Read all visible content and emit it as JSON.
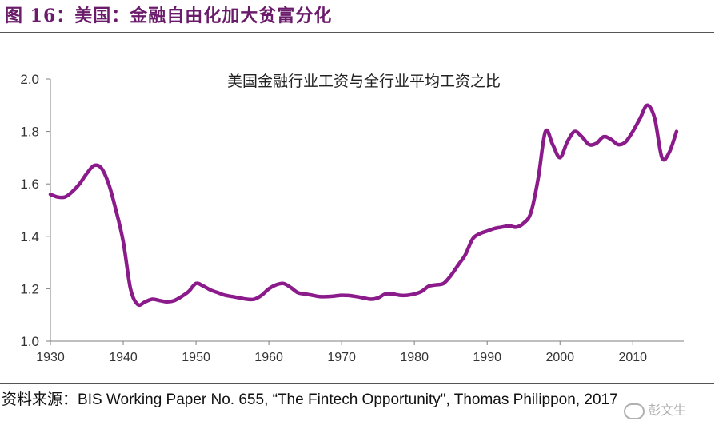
{
  "figure": {
    "title": "图 16：美国：金融自由化加大贫富分化"
  },
  "source": {
    "label": "资料来源：",
    "text": "BIS Working Paper No. 655, “The Fintech Opportunity\", Thomas Philippon, 2017"
  },
  "watermark": {
    "text": "彭文生"
  },
  "chart_data": {
    "type": "line",
    "title": "美国金融行业工资与全行业平均工资之比",
    "xlabel": "",
    "ylabel": "",
    "xlim": [
      1930,
      2017
    ],
    "ylim": [
      1.0,
      2.0
    ],
    "xticks": [
      1930,
      1940,
      1950,
      1960,
      1970,
      1980,
      1990,
      2000,
      2010
    ],
    "yticks": [
      "1.0",
      "1.2",
      "1.4",
      "1.6",
      "1.8",
      "2.0"
    ],
    "grid": false,
    "line_color": "#8b1a8b",
    "series": [
      {
        "x": [
          1930,
          1931,
          1932,
          1933,
          1934,
          1935,
          1936,
          1937,
          1938,
          1939,
          1940,
          1941,
          1942,
          1943,
          1944,
          1945,
          1946,
          1947,
          1948,
          1949,
          1950,
          1951,
          1952,
          1953,
          1954,
          1955,
          1956,
          1957,
          1958,
          1959,
          1960,
          1961,
          1962,
          1963,
          1964,
          1965,
          1966,
          1967,
          1968,
          1969,
          1970,
          1971,
          1972,
          1973,
          1974,
          1975,
          1976,
          1977,
          1978,
          1979,
          1980,
          1981,
          1982,
          1983,
          1984,
          1985,
          1986,
          1987,
          1988,
          1989,
          1990,
          1991,
          1992,
          1993,
          1994,
          1995,
          1996,
          1997,
          1998,
          1999,
          2000,
          2001,
          2002,
          2003,
          2004,
          2005,
          2006,
          2007,
          2008,
          2009,
          2010,
          2011,
          2012,
          2013,
          2014,
          2015,
          2016
        ],
        "y": [
          1.56,
          1.55,
          1.55,
          1.57,
          1.6,
          1.64,
          1.67,
          1.66,
          1.6,
          1.5,
          1.38,
          1.2,
          1.14,
          1.15,
          1.16,
          1.155,
          1.15,
          1.155,
          1.17,
          1.19,
          1.22,
          1.21,
          1.195,
          1.185,
          1.175,
          1.17,
          1.165,
          1.16,
          1.16,
          1.175,
          1.2,
          1.215,
          1.22,
          1.205,
          1.185,
          1.18,
          1.175,
          1.17,
          1.17,
          1.172,
          1.175,
          1.174,
          1.17,
          1.165,
          1.16,
          1.165,
          1.18,
          1.18,
          1.175,
          1.175,
          1.18,
          1.19,
          1.21,
          1.215,
          1.22,
          1.25,
          1.29,
          1.33,
          1.39,
          1.41,
          1.42,
          1.43,
          1.435,
          1.44,
          1.435,
          1.45,
          1.49,
          1.62,
          1.8,
          1.75,
          1.7,
          1.76,
          1.8,
          1.78,
          1.75,
          1.755,
          1.78,
          1.77,
          1.75,
          1.76,
          1.8,
          1.85,
          1.9,
          1.85,
          1.7,
          1.72,
          1.8
        ]
      }
    ]
  }
}
